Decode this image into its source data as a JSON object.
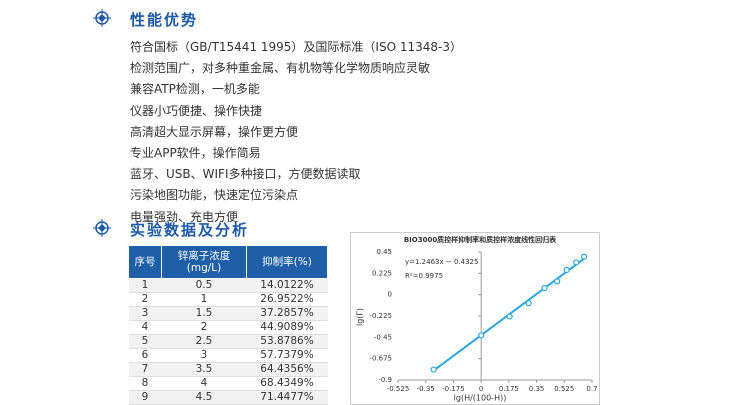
{
  "sections": [
    {
      "title": "性能优势",
      "items": [
        "符合国标（GB/T15441 1995）及国际标准（ISO 11348-3）",
        "检测范围广，对多种重金属、有机物等化学物质响应灵敏",
        "兼容ATP检测，一机多能",
        "仪器小巧便捷、操作快捷",
        "高清超大显示屏幕，操作更方便",
        "专业APP软件，操作简易",
        "蓝牙、USB、WIFI多种接口，方便数据读取",
        "污染地图功能，快速定位污染点",
        "电量强劲、充电方便"
      ]
    },
    {
      "title": "实验数据及分析"
    }
  ],
  "table": {
    "header": [
      "序号",
      [
        "锌离子浓度",
        "(mg/L)"
      ],
      "抑制率(%)"
    ],
    "rows": [
      [
        "1",
        "0.5",
        "14.0122%"
      ],
      [
        "2",
        "1",
        "26.9522%"
      ],
      [
        "3",
        "1.5",
        "37.2857%"
      ],
      [
        "4",
        "2",
        "44.9089%"
      ],
      [
        "5",
        "2.5",
        "53.8786%"
      ],
      [
        "6",
        "3",
        "57.7379%"
      ],
      [
        "7",
        "3.5",
        "64.4356%"
      ],
      [
        "8",
        "4",
        "68.4349%"
      ],
      [
        "9",
        "4.5",
        "71.4477%"
      ]
    ]
  },
  "chart_data": {
    "type": "scatter",
    "title": "BIO3000质控样抑制率和质控样浓度线性回归表",
    "x_label": "lg(H/(100-H))",
    "y_label": "lg(Γ)",
    "annotations": [
      "y=1.2463x − 0.4325",
      "R²=0.9975"
    ],
    "x": [
      -0.3,
      0,
      0.18,
      0.3,
      0.4,
      0.48,
      0.54,
      0.6,
      0.65
    ],
    "values": [
      -0.79,
      -0.43,
      -0.23,
      -0.09,
      0.07,
      0.14,
      0.26,
      0.34,
      0.4
    ],
    "trendline": {
      "x": [
        -0.3,
        0.65
      ],
      "values": [
        -0.8,
        0.38
      ]
    },
    "color": "#29a8e0",
    "xlim": [
      -0.525,
      0.7
    ],
    "xticks": [
      -0.525,
      -0.35,
      -0.175,
      0,
      0.175,
      0.35,
      0.525,
      0.7
    ],
    "ylim": [
      -0.9,
      0.45
    ],
    "yticks": [
      0.45,
      0.225,
      0,
      -0.225,
      -0.45,
      -0.675,
      -0.9
    ]
  }
}
